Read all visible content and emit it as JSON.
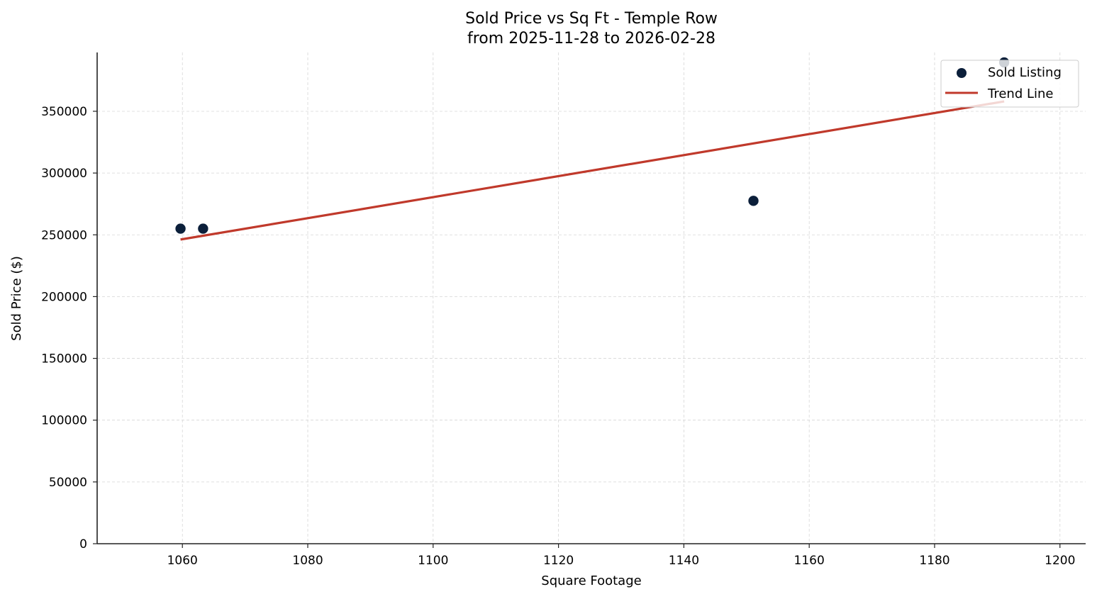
{
  "chart_data": {
    "type": "scatter",
    "title": "Sold Price vs Sq Ft - Temple Row",
    "subtitle": "from 2025-11-28 to 2026-02-28",
    "xlabel": "Square Footage",
    "ylabel": "Sold Price ($)",
    "xlim": [
      1046.4,
      1204.1
    ],
    "ylim": [
      0,
      397600
    ],
    "xticks": [
      1060,
      1080,
      1100,
      1120,
      1140,
      1160,
      1180,
      1200
    ],
    "yticks": [
      0,
      50000,
      100000,
      150000,
      200000,
      250000,
      300000,
      350000
    ],
    "grid": true,
    "legend_position": "upper right",
    "series": [
      {
        "name": "Sold Listing",
        "kind": "scatter",
        "color": "#0b1f3a",
        "points": [
          {
            "x": 1059.7,
            "y": 255000
          },
          {
            "x": 1063.3,
            "y": 255000
          },
          {
            "x": 1151.1,
            "y": 277500
          },
          {
            "x": 1191.1,
            "y": 389500
          }
        ]
      },
      {
        "name": "Trend Line",
        "kind": "line",
        "color": "#c0392b",
        "points": [
          {
            "x": 1059.7,
            "y": 246200
          },
          {
            "x": 1191.1,
            "y": 358000
          }
        ]
      }
    ]
  }
}
